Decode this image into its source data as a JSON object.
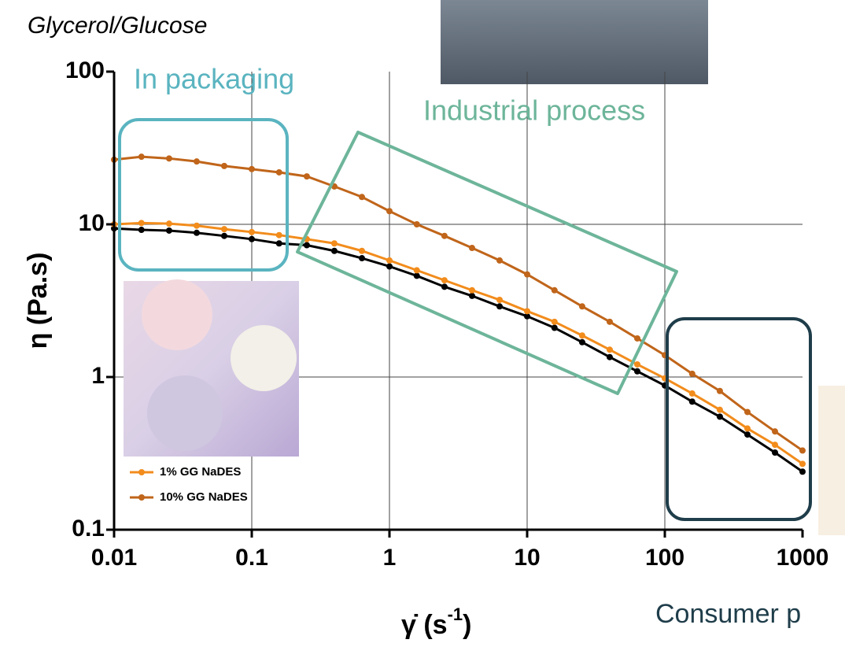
{
  "chart_data": {
    "type": "line",
    "title": "Glycerol/Glucose",
    "y_label": "η (Pa.s)",
    "x_label": {
      "text": "γ̇ (s",
      "sup": "-1",
      "end": ")"
    },
    "annotations": [
      {
        "text": "In packaging",
        "color": "#5ab4c0"
      },
      {
        "text": "Industrial process",
        "color": "#6db59a"
      },
      {
        "text": "Consumer p",
        "color": "#1f3d4a"
      }
    ],
    "log_x": true,
    "log_y": true,
    "grid": true,
    "xlim": [
      0.01,
      1000
    ],
    "xticks": [
      0.01,
      0.1,
      1,
      10,
      100,
      1000
    ],
    "ylim": [
      0.1,
      100
    ],
    "yticks": [
      0.1,
      1,
      10,
      100
    ],
    "x": [
      0.01,
      0.0158,
      0.0251,
      0.0398,
      0.0631,
      0.1,
      0.158,
      0.251,
      0.398,
      0.631,
      1,
      1.58,
      2.51,
      3.98,
      6.31,
      10,
      15.8,
      25.1,
      39.8,
      63.1,
      100,
      158,
      251,
      398,
      631,
      1000
    ],
    "series": [
      {
        "name": null,
        "color": "#000000",
        "values": [
          9.4,
          9.2,
          9.1,
          8.8,
          8.4,
          8.0,
          7.5,
          7.3,
          6.7,
          6.0,
          5.3,
          4.6,
          3.9,
          3.4,
          2.9,
          2.5,
          2.1,
          1.69,
          1.35,
          1.09,
          0.88,
          0.69,
          0.55,
          0.42,
          0.32,
          0.24
        ]
      },
      {
        "name": "1% GG NaDES",
        "color": "#f28c1c",
        "values": [
          10.0,
          10.2,
          10.1,
          9.8,
          9.3,
          8.9,
          8.5,
          8.0,
          7.5,
          6.7,
          5.8,
          5.0,
          4.3,
          3.7,
          3.2,
          2.7,
          2.3,
          1.87,
          1.51,
          1.21,
          0.98,
          0.78,
          0.61,
          0.46,
          0.36,
          0.27
        ]
      },
      {
        "name": "10% GG NaDES",
        "color": "#c0651a",
        "values": [
          26.5,
          27.7,
          27.0,
          25.8,
          24.1,
          23.0,
          21.9,
          20.6,
          17.7,
          15.1,
          12.2,
          10.0,
          8.4,
          7.0,
          5.8,
          4.7,
          3.7,
          2.9,
          2.3,
          1.79,
          1.39,
          1.05,
          0.81,
          0.59,
          0.44,
          0.33
        ]
      }
    ]
  }
}
